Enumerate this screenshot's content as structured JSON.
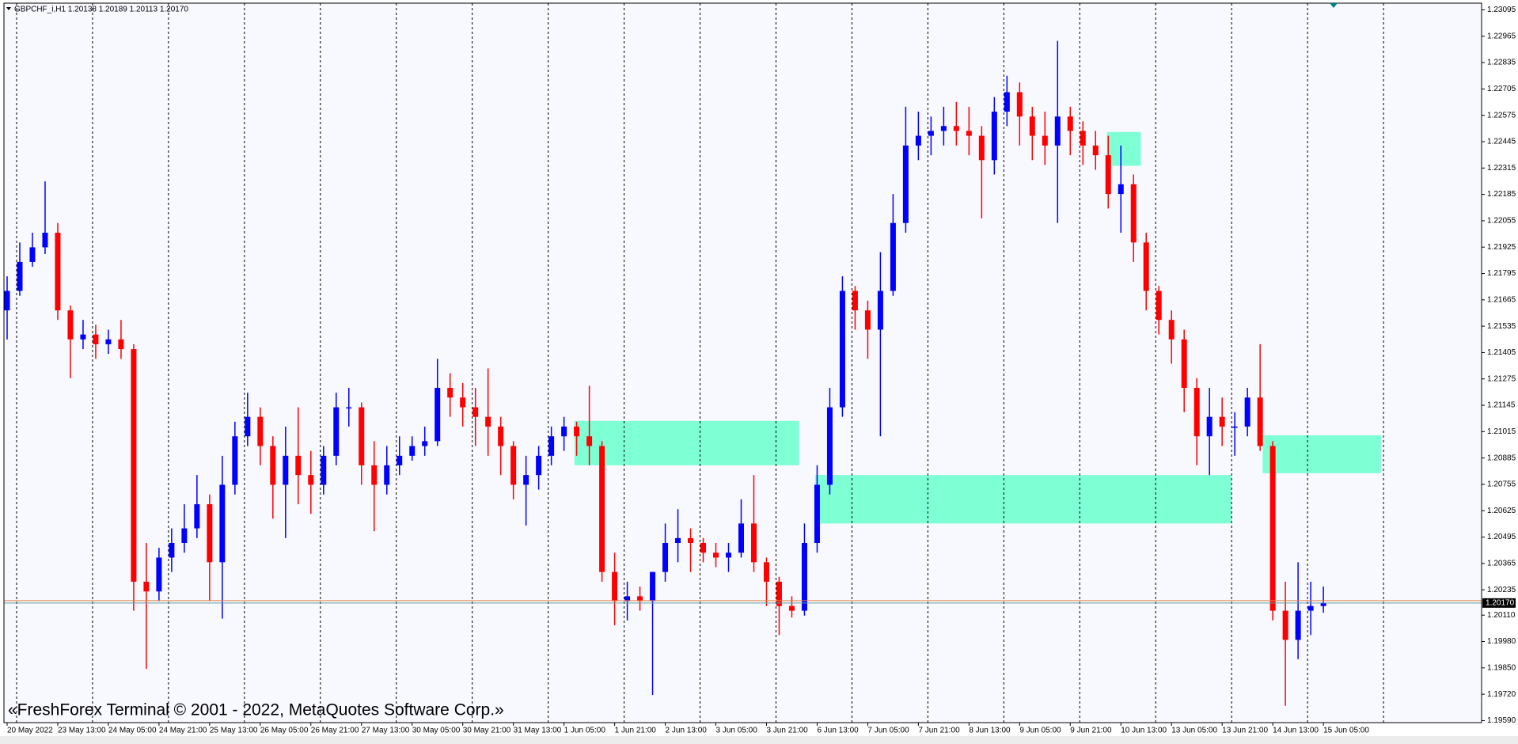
{
  "chart_data": {
    "type": "candlestick",
    "title": "GBPCHF_i,H1  1.20138 1.20189 1.20113 1.20170",
    "watermark": "«FreshForex Terminal © 2001 - 2022, MetaQuotes Software Corp.»",
    "up_color": "#0000ff",
    "down_color": "#ff0000",
    "zone_color": "#7fffd4",
    "background": "#f8f8ff",
    "xlim": [
      -1,
      466
    ],
    "ylim": [
      1.1958,
      1.23128
    ],
    "x": [
      0,
      4,
      8,
      12,
      16,
      20,
      24,
      28,
      32,
      36,
      40,
      44,
      48,
      52,
      56,
      60,
      64,
      68,
      72,
      76,
      80,
      84,
      88,
      92,
      96,
      100,
      104,
      108,
      112,
      116,
      120,
      124,
      128,
      132,
      136,
      140,
      144,
      148,
      152,
      156,
      160,
      164,
      168,
      172,
      176,
      180,
      184,
      188,
      192,
      196,
      200,
      204,
      208,
      212,
      216,
      220,
      224,
      228,
      232,
      236,
      240,
      244,
      248,
      252,
      256,
      260,
      264,
      268,
      272,
      276,
      280,
      284,
      288,
      292,
      296,
      300,
      304,
      308,
      312,
      316,
      320,
      324,
      328,
      332,
      336,
      340,
      344,
      348,
      352,
      356,
      360,
      364,
      368,
      372,
      376,
      380,
      384,
      388,
      392,
      396,
      400,
      404,
      408,
      412,
      416
    ],
    "open": [
      1.21613,
      1.21709,
      1.21852,
      1.21924,
      1.21996,
      1.21613,
      1.2147,
      1.21494,
      1.21446,
      1.2147,
      1.21422,
      1.20275,
      1.20227,
      1.20394,
      1.20466,
      1.20538,
      1.20657,
      1.20371,
      1.20753,
      1.20992,
      1.21088,
      1.20944,
      1.20753,
      1.20896,
      1.20801,
      1.20753,
      1.20896,
      1.21135,
      1.21135,
      1.20849,
      1.20753,
      1.20849,
      1.20896,
      1.20944,
      1.20968,
      1.21231,
      1.21183,
      1.21135,
      1.21088,
      1.2104,
      1.20944,
      1.20753,
      1.20801,
      1.20896,
      1.20992,
      1.2104,
      1.20992,
      1.20944,
      1.20323,
      1.20179,
      1.20203,
      1.20179,
      1.20323,
      1.20466,
      1.2049,
      1.20466,
      1.20418,
      1.20394,
      1.20418,
      1.20562,
      1.20371,
      1.20275,
      1.20155,
      1.20132,
      1.20466,
      1.20753,
      1.21135,
      1.21709,
      1.21613,
      1.21518,
      1.21709,
      1.22044,
      1.22426,
      1.22474,
      1.22498,
      1.22522,
      1.22498,
      1.22474,
      1.22354,
      1.22593,
      1.22689,
      1.22569,
      1.22474,
      1.22426,
      1.22569,
      1.22498,
      1.22426,
      1.22378,
      1.22187,
      1.22235,
      1.21948,
      1.21709,
      1.21566,
      1.2147,
      1.21231,
      1.20992,
      1.21088,
      1.2104,
      1.2104,
      1.21183,
      1.20944,
      1.20132,
      1.19988,
      1.20132,
      1.20155
    ],
    "high": [
      1.21781,
      1.21948,
      1.21996,
      1.22249,
      1.22044,
      1.21637,
      1.21566,
      1.21542,
      1.21518,
      1.21566,
      1.21446,
      1.20466,
      1.20442,
      1.20538,
      1.20657,
      1.20801,
      1.20705,
      1.20896,
      1.21064,
      1.21207,
      1.21135,
      1.20992,
      1.2104,
      1.21135,
      1.2092,
      1.20944,
      1.21207,
      1.21231,
      1.21159,
      1.20968,
      1.20944,
      1.20992,
      1.20992,
      1.2104,
      1.21374,
      1.21303,
      1.21255,
      1.21231,
      1.21327,
      1.21088,
      1.20968,
      1.20896,
      1.20944,
      1.2104,
      1.21088,
      1.21064,
      1.21241,
      1.20968,
      1.20418,
      1.20275,
      1.20251,
      1.20323,
      1.20562,
      1.20633,
      1.20538,
      1.2049,
      1.20466,
      1.20466,
      1.20681,
      1.20801,
      1.20394,
      1.20299,
      1.20203,
      1.20562,
      1.20849,
      1.21231,
      1.21781,
      1.21733,
      1.21661,
      1.219,
      1.22187,
      1.22617,
      1.22593,
      1.22569,
      1.22617,
      1.22641,
      1.22617,
      1.22522,
      1.22665,
      1.2277,
      1.22737,
      1.22617,
      1.22593,
      1.22942,
      1.22617,
      1.22545,
      1.22498,
      1.22474,
      1.22426,
      1.22283,
      1.21996,
      1.21733,
      1.21613,
      1.21518,
      1.21279,
      1.21231,
      1.21183,
      1.21111,
      1.21231,
      1.21446,
      1.20968,
      1.20275,
      1.20371,
      1.20275,
      1.20251
    ],
    "low": [
      1.2147,
      1.21685,
      1.21828,
      1.21891,
      1.21566,
      1.21279,
      1.21422,
      1.21374,
      1.21398,
      1.21374,
      1.20132,
      1.19845,
      1.20179,
      1.20323,
      1.20418,
      1.2049,
      1.20179,
      1.20093,
      1.20705,
      1.20944,
      1.20849,
      1.20586,
      1.2049,
      1.20657,
      1.2061,
      1.20705,
      1.20849,
      1.2104,
      1.20753,
      1.20524,
      1.20705,
      1.20801,
      1.20872,
      1.20896,
      1.20944,
      1.21088,
      1.2104,
      1.20944,
      1.20896,
      1.20801,
      1.20681,
      1.20552,
      1.20729,
      1.20849,
      1.2092,
      1.20896,
      1.20849,
      1.20275,
      1.2006,
      1.20084,
      1.20132,
      1.19716,
      1.20275,
      1.20371,
      1.20323,
      1.20371,
      1.20347,
      1.20323,
      1.20394,
      1.20323,
      1.20155,
      1.20012,
      1.20098,
      1.20108,
      1.20418,
      1.20705,
      1.21088,
      1.21518,
      1.21374,
      1.20992,
      1.21685,
      1.21996,
      1.22354,
      1.22378,
      1.22426,
      1.22426,
      1.22378,
      1.22067,
      1.22283,
      1.22522,
      1.22426,
      1.22354,
      1.2233,
      1.22044,
      1.22378,
      1.2233,
      1.22306,
      1.22115,
      1.21996,
      1.21852,
      1.21613,
      1.21494,
      1.2135,
      1.21111,
      1.20849,
      1.20801,
      1.20944,
      1.20896,
      1.20992,
      1.2092,
      1.20084,
      1.19663,
      1.19893,
      1.20012,
      1.20122
    ],
    "close": [
      1.21709,
      1.21852,
      1.21924,
      1.21996,
      1.21613,
      1.2147,
      1.21494,
      1.21446,
      1.2147,
      1.21422,
      1.20275,
      1.20227,
      1.20394,
      1.20466,
      1.20538,
      1.20657,
      1.20371,
      1.20753,
      1.20992,
      1.21088,
      1.20944,
      1.20753,
      1.20896,
      1.20801,
      1.20753,
      1.20896,
      1.21135,
      1.21135,
      1.20849,
      1.20753,
      1.20849,
      1.20896,
      1.20944,
      1.20968,
      1.21231,
      1.21183,
      1.21135,
      1.21088,
      1.2104,
      1.20944,
      1.20753,
      1.20801,
      1.20896,
      1.20992,
      1.2104,
      1.20992,
      1.20944,
      1.20323,
      1.20179,
      1.20203,
      1.20179,
      1.20323,
      1.20466,
      1.2049,
      1.20466,
      1.20418,
      1.20394,
      1.20418,
      1.20562,
      1.20371,
      1.20275,
      1.20155,
      1.20132,
      1.20466,
      1.20753,
      1.21135,
      1.21709,
      1.21613,
      1.21518,
      1.21709,
      1.22044,
      1.22426,
      1.22474,
      1.22498,
      1.22522,
      1.22498,
      1.22474,
      1.22354,
      1.22593,
      1.22689,
      1.22569,
      1.22474,
      1.22426,
      1.22569,
      1.22498,
      1.22426,
      1.22378,
      1.22187,
      1.22235,
      1.21948,
      1.21709,
      1.21566,
      1.2147,
      1.21231,
      1.20992,
      1.21088,
      1.2104,
      1.2104,
      1.21183,
      1.20944,
      1.20132,
      1.19988,
      1.20132,
      1.20155,
      1.2017
    ],
    "xticks": [
      {
        "value": 0,
        "label": "20 May 2022"
      },
      {
        "value": 16,
        "label": "23 May 13:00"
      },
      {
        "value": 32,
        "label": "24 May 05:00"
      },
      {
        "value": 48,
        "label": "24 May 21:00"
      },
      {
        "value": 64,
        "label": "25 May 13:00"
      },
      {
        "value": 80,
        "label": "26 May 05:00"
      },
      {
        "value": 96,
        "label": "26 May 21:00"
      },
      {
        "value": 112,
        "label": "27 May 13:00"
      },
      {
        "value": 128,
        "label": "30 May 05:00"
      },
      {
        "value": 144,
        "label": "30 May 21:00"
      },
      {
        "value": 160,
        "label": "31 May 13:00"
      },
      {
        "value": 176,
        "label": "1 Jun 05:00"
      },
      {
        "value": 192,
        "label": "1 Jun 21:00"
      },
      {
        "value": 208,
        "label": "2 Jun 13:00"
      },
      {
        "value": 224,
        "label": "3 Jun 05:00"
      },
      {
        "value": 240,
        "label": "3 Jun 21:00"
      },
      {
        "value": 256,
        "label": "6 Jun 13:00"
      },
      {
        "value": 272,
        "label": "7 Jun 05:00"
      },
      {
        "value": 288,
        "label": "7 Jun 21:00"
      },
      {
        "value": 304,
        "label": "8 Jun 13:00"
      },
      {
        "value": 320,
        "label": "9 Jun 05:00"
      },
      {
        "value": 336,
        "label": "9 Jun 21:00"
      },
      {
        "value": 352,
        "label": "10 Jun 13:00"
      },
      {
        "value": 368,
        "label": "13 Jun 05:00"
      },
      {
        "value": 384,
        "label": "13 Jun 21:00"
      },
      {
        "value": 400,
        "label": "14 Jun 13:00"
      },
      {
        "value": 416,
        "label": "15 Jun 05:00"
      }
    ],
    "yticks": [
      1.23095,
      1.22965,
      1.22835,
      1.22705,
      1.22575,
      1.22445,
      1.22315,
      1.22185,
      1.22055,
      1.21925,
      1.21795,
      1.21665,
      1.21535,
      1.21405,
      1.21275,
      1.21145,
      1.21015,
      1.20885,
      1.20755,
      1.20625,
      1.20495,
      1.20365,
      1.20235,
      {
        "value": 1.2011,
        "label": "1.20110"
      },
      {
        "value": 1.1998,
        "label": "1.19980"
      },
      {
        "value": 1.1985,
        "label": "1.19850"
      },
      {
        "value": 1.1972,
        "label": "1.19720"
      },
      {
        "value": 1.1959,
        "label": "1.19590"
      }
    ],
    "current_price": {
      "value": 1.2017,
      "label": "1.20170"
    },
    "period_separators": [
      3,
      27,
      51,
      75,
      99,
      123,
      147,
      171,
      195,
      219,
      243,
      267,
      291,
      315,
      339,
      363,
      387,
      411,
      435
    ],
    "zones": [
      {
        "x": [
          179.3,
          250.3
        ],
        "y": [
          1.20849,
          1.21068
        ]
      },
      {
        "x": [
          255.4,
          387.0
        ],
        "y": [
          1.20562,
          1.20801
        ]
      },
      {
        "x": [
          347.6,
          358.3
        ],
        "y": [
          1.22326,
          1.22493
        ]
      },
      {
        "x": [
          396.8,
          434.2
        ],
        "y": [
          1.2081,
          1.20997
        ]
      }
    ]
  }
}
